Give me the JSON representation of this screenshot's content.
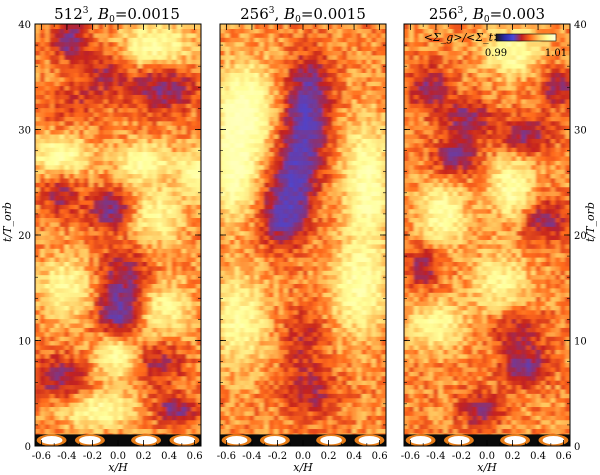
{
  "figure": {
    "ylabel": "t/T_orb",
    "xlabel": "x/H",
    "colorbar": {
      "label": "<Σ_g>/<Σ_t>",
      "tick_min": "0.99",
      "tick_max": "1.01",
      "vmin": 0.99,
      "vmax": 1.01
    }
  },
  "chart_data": [
    {
      "type": "heatmap",
      "title": "512^3, B0=0.0015",
      "title_parts": {
        "res": "512",
        "exp": "3",
        "field": "B",
        "sub": "0",
        "value": "=0.0015"
      },
      "xlabel": "x/H",
      "ylabel": "t/T_orb",
      "xlim": [
        -0.65,
        0.65
      ],
      "ylim": [
        0,
        40
      ],
      "x_ticks": [
        "-0.6",
        "-0.4",
        "-0.2",
        "0.0",
        "0.2",
        "0.4",
        "0.6"
      ],
      "y_ticks": [
        "0",
        "10",
        "20",
        "30",
        "40"
      ],
      "colormap": [
        "#1a1a1a",
        "#2a2aa8",
        "#4747d8",
        "#c22020",
        "#ff6a1a",
        "#ffc860",
        "#ffff9a",
        "#ffffe0"
      ],
      "blobs": [
        {
          "x": -0.38,
          "t": 38.5,
          "v": -1.0,
          "sx": 0.09,
          "st": 1.2
        },
        {
          "x": 0.3,
          "t": 38.0,
          "v": 0.9,
          "sx": 0.18,
          "st": 1.5
        },
        {
          "x": -0.1,
          "t": 35.5,
          "v": -0.6,
          "sx": 0.12,
          "st": 1.5
        },
        {
          "x": 0.35,
          "t": 34.0,
          "v": -0.9,
          "sx": 0.18,
          "st": 1.5
        },
        {
          "x": -0.35,
          "t": 32.5,
          "v": -0.4,
          "sx": 0.15,
          "st": 1.5
        },
        {
          "x": -0.45,
          "t": 27.5,
          "v": 1.0,
          "sx": 0.15,
          "st": 1.3
        },
        {
          "x": 0.2,
          "t": 27.0,
          "v": 0.9,
          "sx": 0.15,
          "st": 1.2
        },
        {
          "x": 0.6,
          "t": 26.0,
          "v": 0.8,
          "sx": 0.08,
          "st": 1.5
        },
        {
          "x": -0.05,
          "t": 22.5,
          "v": -1.0,
          "sx": 0.12,
          "st": 1.3
        },
        {
          "x": -0.45,
          "t": 24.0,
          "v": -0.7,
          "sx": 0.1,
          "st": 1.5
        },
        {
          "x": 0.3,
          "t": 22.0,
          "v": 0.7,
          "sx": 0.15,
          "st": 2.0
        },
        {
          "x": 0.05,
          "t": 16.0,
          "v": -0.8,
          "sx": 0.15,
          "st": 2.0
        },
        {
          "x": 0.0,
          "t": 12.5,
          "v": -1.0,
          "sx": 0.12,
          "st": 1.5
        },
        {
          "x": -0.4,
          "t": 15.0,
          "v": 0.8,
          "sx": 0.15,
          "st": 2.0
        },
        {
          "x": 0.35,
          "t": 13.0,
          "v": 0.7,
          "sx": 0.15,
          "st": 2.0
        },
        {
          "x": 0.3,
          "t": 8.0,
          "v": -0.7,
          "sx": 0.15,
          "st": 1.5
        },
        {
          "x": -0.45,
          "t": 6.5,
          "v": -0.8,
          "sx": 0.15,
          "st": 1.5
        },
        {
          "x": 0.0,
          "t": 8.5,
          "v": 0.9,
          "sx": 0.12,
          "st": 1.5
        },
        {
          "x": 0.45,
          "t": 3.5,
          "v": -0.9,
          "sx": 0.12,
          "st": 1.0
        },
        {
          "x": -0.15,
          "t": 3.5,
          "v": 0.8,
          "sx": 0.2,
          "st": 1.2
        }
      ]
    },
    {
      "type": "heatmap",
      "title": "256^3, B0=0.0015",
      "title_parts": {
        "res": "256",
        "exp": "3",
        "field": "B",
        "sub": "0",
        "value": "=0.0015"
      },
      "xlabel": "x/H",
      "ylabel": "t/T_orb",
      "xlim": [
        -0.65,
        0.65
      ],
      "ylim": [
        0,
        40
      ],
      "x_ticks": [
        "-0.6",
        "-0.4",
        "-0.2",
        "0.0",
        "0.2",
        "0.4",
        "0.6"
      ],
      "y_ticks": [
        "0",
        "10",
        "20",
        "30",
        "40"
      ],
      "colormap": [
        "#1a1a1a",
        "#2a2aa8",
        "#4747d8",
        "#c22020",
        "#ff6a1a",
        "#ffc860",
        "#ffff9a",
        "#ffffe0"
      ],
      "blobs": [
        {
          "x": 0.05,
          "t": 33.5,
          "v": -1.0,
          "sx": 0.12,
          "st": 2.5
        },
        {
          "x": 0.0,
          "t": 29.0,
          "v": -1.0,
          "sx": 0.12,
          "st": 2.5
        },
        {
          "x": -0.08,
          "t": 25.0,
          "v": -1.0,
          "sx": 0.12,
          "st": 2.0
        },
        {
          "x": -0.15,
          "t": 21.5,
          "v": -1.1,
          "sx": 0.12,
          "st": 1.8
        },
        {
          "x": -0.45,
          "t": 32.0,
          "v": 1.1,
          "sx": 0.15,
          "st": 3.0
        },
        {
          "x": -0.55,
          "t": 26.0,
          "v": 1.0,
          "sx": 0.12,
          "st": 3.0
        },
        {
          "x": 0.5,
          "t": 25.0,
          "v": 1.0,
          "sx": 0.12,
          "st": 4.0
        },
        {
          "x": 0.45,
          "t": 15.0,
          "v": 0.9,
          "sx": 0.15,
          "st": 3.0
        },
        {
          "x": -0.5,
          "t": 12.0,
          "v": 0.8,
          "sx": 0.15,
          "st": 3.0
        },
        {
          "x": 0.0,
          "t": 10.0,
          "v": -0.5,
          "sx": 0.12,
          "st": 2.5
        },
        {
          "x": 0.05,
          "t": 5.0,
          "v": -0.6,
          "sx": 0.15,
          "st": 1.5
        }
      ]
    },
    {
      "type": "heatmap",
      "title": "256^3, B0=0.003",
      "title_parts": {
        "res": "256",
        "exp": "3",
        "field": "B",
        "sub": "0",
        "value": "=0.003"
      },
      "xlabel": "x/H",
      "ylabel": "t/T_orb",
      "xlim": [
        -0.65,
        0.65
      ],
      "ylim": [
        0,
        40
      ],
      "x_ticks": [
        "-0.6",
        "-0.4",
        "-0.2",
        "0.0",
        "0.2",
        "0.4",
        "0.6"
      ],
      "y_ticks": [
        "0",
        "10",
        "20",
        "30",
        "40"
      ],
      "colormap": [
        "#1a1a1a",
        "#2a2aa8",
        "#4747d8",
        "#c22020",
        "#ff6a1a",
        "#ffc860",
        "#ffff9a",
        "#ffffe0"
      ],
      "blobs": [
        {
          "x": 0.2,
          "t": 37.5,
          "v": 0.9,
          "sx": 0.15,
          "st": 1.5
        },
        {
          "x": -0.45,
          "t": 34.0,
          "v": -0.8,
          "sx": 0.12,
          "st": 1.5
        },
        {
          "x": 0.55,
          "t": 34.0,
          "v": -0.8,
          "sx": 0.1,
          "st": 1.2
        },
        {
          "x": -0.15,
          "t": 31.0,
          "v": -0.9,
          "sx": 0.12,
          "st": 1.3
        },
        {
          "x": 0.3,
          "t": 29.5,
          "v": -0.8,
          "sx": 0.15,
          "st": 1.3
        },
        {
          "x": -0.25,
          "t": 27.5,
          "v": -0.9,
          "sx": 0.12,
          "st": 1.2
        },
        {
          "x": 0.2,
          "t": 24.5,
          "v": 0.9,
          "sx": 0.12,
          "st": 2.0
        },
        {
          "x": -0.35,
          "t": 22.0,
          "v": 0.9,
          "sx": 0.12,
          "st": 2.0
        },
        {
          "x": 0.45,
          "t": 21.5,
          "v": -0.8,
          "sx": 0.12,
          "st": 1.5
        },
        {
          "x": -0.5,
          "t": 17.0,
          "v": -0.7,
          "sx": 0.1,
          "st": 1.5
        },
        {
          "x": 0.1,
          "t": 15.5,
          "v": 0.7,
          "sx": 0.15,
          "st": 2.0
        },
        {
          "x": 0.25,
          "t": 11.0,
          "v": -0.6,
          "sx": 0.15,
          "st": 1.5
        },
        {
          "x": -0.4,
          "t": 11.5,
          "v": 0.8,
          "sx": 0.15,
          "st": 1.5
        },
        {
          "x": 0.3,
          "t": 7.5,
          "v": -1.0,
          "sx": 0.12,
          "st": 1.2
        },
        {
          "x": -0.05,
          "t": 3.5,
          "v": -0.8,
          "sx": 0.12,
          "st": 1.2
        }
      ]
    }
  ]
}
